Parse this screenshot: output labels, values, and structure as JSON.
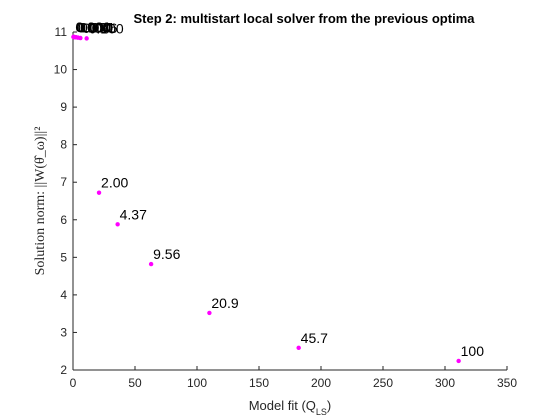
{
  "chart_data": {
    "type": "scatter",
    "title": "Step 2: multistart local solver from the previous optima",
    "xlabel": "Model fit (Q",
    "xlabel_sub": "LS",
    "xlabel_end": ")",
    "ylabel": "Solution norm:  ||W(θ̂_ω)||²",
    "xlim": [
      0,
      350
    ],
    "ylim": [
      2,
      11
    ],
    "xticks": [
      0,
      50,
      100,
      150,
      200,
      250,
      300,
      350
    ],
    "yticks": [
      2,
      3,
      4,
      5,
      6,
      7,
      8,
      9,
      10,
      11
    ],
    "marker_color": "#ff00ff",
    "grid": false,
    "points": [
      {
        "x": 0.3,
        "y": 10.87,
        "label": "0.000"
      },
      {
        "x": 0.8,
        "y": 10.87,
        "label": "0.001"
      },
      {
        "x": 1.5,
        "y": 10.86,
        "label": "0.004"
      },
      {
        "x": 2.5,
        "y": 10.86,
        "label": "0.010"
      },
      {
        "x": 4.0,
        "y": 10.85,
        "label": "0.021"
      },
      {
        "x": 6.0,
        "y": 10.84,
        "label": "0.046"
      },
      {
        "x": 11.0,
        "y": 10.83,
        "label": "0.100"
      },
      {
        "x": 21.0,
        "y": 6.72,
        "label": "2.00"
      },
      {
        "x": 36.0,
        "y": 5.88,
        "label": "4.37"
      },
      {
        "x": 63.0,
        "y": 4.82,
        "label": "9.56"
      },
      {
        "x": 110.0,
        "y": 3.52,
        "label": "20.9"
      },
      {
        "x": 182.0,
        "y": 2.59,
        "label": "45.7"
      },
      {
        "x": 311.0,
        "y": 2.24,
        "label": "100"
      }
    ]
  }
}
